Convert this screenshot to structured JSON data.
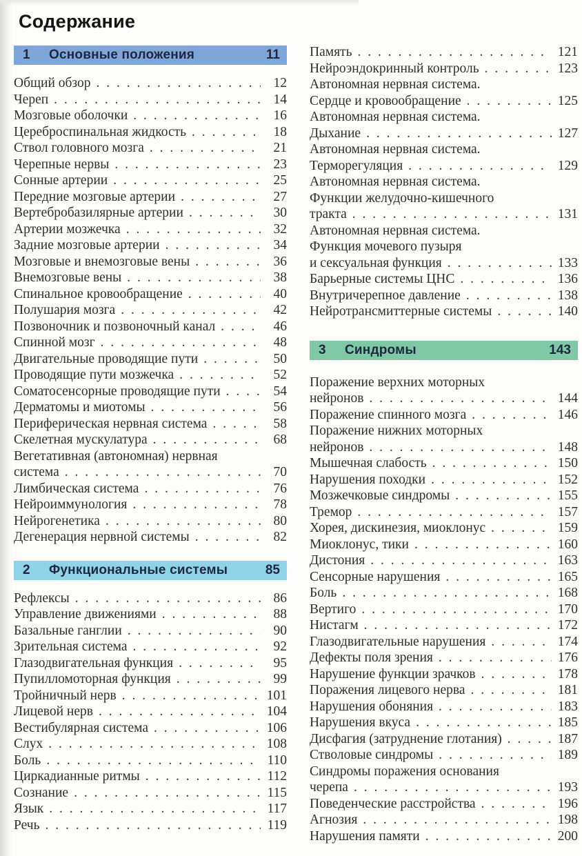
{
  "page_title": "Содержание",
  "toc": {
    "left_column": [
      {
        "type": "section",
        "number": "1",
        "title": "Основные положения",
        "page": "11",
        "bg": "#7ea6d8"
      },
      {
        "type": "entry",
        "lines": [
          "Общий обзор"
        ],
        "page": "12"
      },
      {
        "type": "entry",
        "lines": [
          "Череп"
        ],
        "page": "14"
      },
      {
        "type": "entry",
        "lines": [
          "Мозговые оболочки"
        ],
        "page": "16"
      },
      {
        "type": "entry",
        "lines": [
          "Цереброспинальная жидкость"
        ],
        "page": "18"
      },
      {
        "type": "entry",
        "lines": [
          "Ствол головного мозга"
        ],
        "page": "21"
      },
      {
        "type": "entry",
        "lines": [
          "Черепные нервы"
        ],
        "page": "23"
      },
      {
        "type": "entry",
        "lines": [
          "Сонные артерии"
        ],
        "page": "25"
      },
      {
        "type": "entry",
        "lines": [
          "Передние мозговые артерии"
        ],
        "page": "27"
      },
      {
        "type": "entry",
        "lines": [
          "Вертебробазилярные артерии"
        ],
        "page": "30"
      },
      {
        "type": "entry",
        "lines": [
          "Артерии мозжечка"
        ],
        "page": "32"
      },
      {
        "type": "entry",
        "lines": [
          "Задние мозговые артерии"
        ],
        "page": "34"
      },
      {
        "type": "entry",
        "lines": [
          "Мозговые и внемозговые вены"
        ],
        "page": "36"
      },
      {
        "type": "entry",
        "lines": [
          "Внемозговые вены"
        ],
        "page": "38"
      },
      {
        "type": "entry",
        "lines": [
          "Спинальное кровообращение"
        ],
        "page": "40"
      },
      {
        "type": "entry",
        "lines": [
          "Полушария мозга"
        ],
        "page": "42"
      },
      {
        "type": "entry",
        "lines": [
          "Позвоночник и позвоночный канал"
        ],
        "page": "46"
      },
      {
        "type": "entry",
        "lines": [
          "Спинной мозг"
        ],
        "page": "48"
      },
      {
        "type": "entry",
        "lines": [
          "Двигательные проводящие пути"
        ],
        "page": "50"
      },
      {
        "type": "entry",
        "lines": [
          "Проводящие пути мозжечка"
        ],
        "page": "52"
      },
      {
        "type": "entry",
        "lines": [
          "Соматосенсорные проводящие пути"
        ],
        "page": "54"
      },
      {
        "type": "entry",
        "lines": [
          "Дерматомы и миотомы"
        ],
        "page": "56"
      },
      {
        "type": "entry",
        "lines": [
          "Периферическая нервная система"
        ],
        "page": "58"
      },
      {
        "type": "entry",
        "lines": [
          "Скелетная мускулатура"
        ],
        "page": "68"
      },
      {
        "type": "entry",
        "lines": [
          "Вегетативная (автономная) нервная",
          "система"
        ],
        "page": "70"
      },
      {
        "type": "entry",
        "lines": [
          "Лимбическая система"
        ],
        "page": "76"
      },
      {
        "type": "entry",
        "lines": [
          "Нейроиммунология"
        ],
        "page": "78"
      },
      {
        "type": "entry",
        "lines": [
          "Нейрогенетика"
        ],
        "page": "80"
      },
      {
        "type": "entry",
        "lines": [
          "Дегенерация нервной системы"
        ],
        "page": "82"
      },
      {
        "type": "section",
        "number": "2",
        "title": "Функциональные системы",
        "page": "85",
        "bg": "#8fd3e6"
      },
      {
        "type": "entry",
        "lines": [
          "Рефлексы"
        ],
        "page": "86"
      },
      {
        "type": "entry",
        "lines": [
          "Управление движениями"
        ],
        "page": "88"
      },
      {
        "type": "entry",
        "lines": [
          "Базальные ганглии"
        ],
        "page": "90"
      },
      {
        "type": "entry",
        "lines": [
          "Зрительная система"
        ],
        "page": "92"
      },
      {
        "type": "entry",
        "lines": [
          "Глазодвигательная функция"
        ],
        "page": "95"
      },
      {
        "type": "entry",
        "lines": [
          "Пупилломоторная функция"
        ],
        "page": "99"
      },
      {
        "type": "entry",
        "lines": [
          "Тройничный нерв"
        ],
        "page": "101"
      },
      {
        "type": "entry",
        "lines": [
          "Лицевой нерв"
        ],
        "page": "104"
      },
      {
        "type": "entry",
        "lines": [
          "Вестибулярная система"
        ],
        "page": "106"
      },
      {
        "type": "entry",
        "lines": [
          "Слух"
        ],
        "page": "108"
      },
      {
        "type": "entry",
        "lines": [
          "Боль"
        ],
        "page": "110"
      },
      {
        "type": "entry",
        "lines": [
          "Циркадианные ритмы"
        ],
        "page": "112"
      },
      {
        "type": "entry",
        "lines": [
          "Сознание"
        ],
        "page": "115"
      },
      {
        "type": "entry",
        "lines": [
          "Язык"
        ],
        "page": "117"
      },
      {
        "type": "entry",
        "lines": [
          "Речь"
        ],
        "page": "119"
      }
    ],
    "right_column": [
      {
        "type": "entry",
        "lines": [
          "Память"
        ],
        "page": "121"
      },
      {
        "type": "entry",
        "lines": [
          "Нейроэндокринный контроль"
        ],
        "page": "123"
      },
      {
        "type": "entry",
        "lines": [
          "Автономная нервная система.",
          "Сердце и кровообращение"
        ],
        "page": "125"
      },
      {
        "type": "entry",
        "lines": [
          "Автономная нервная система.",
          "Дыхание"
        ],
        "page": "127"
      },
      {
        "type": "entry",
        "lines": [
          "Автономная нервная система.",
          "Терморегуляция"
        ],
        "page": "129"
      },
      {
        "type": "entry",
        "lines": [
          "Автономная нервная система.",
          "Функции желудочно-кишечного",
          "тракта"
        ],
        "page": "131"
      },
      {
        "type": "entry",
        "lines": [
          "Автономная нервная система.",
          "Функция мочевого пузыря",
          "и сексуальная функция"
        ],
        "page": "133"
      },
      {
        "type": "entry",
        "lines": [
          "Барьерные системы ЦНС"
        ],
        "page": "136"
      },
      {
        "type": "entry",
        "lines": [
          "Внутричерепное давление"
        ],
        "page": "138"
      },
      {
        "type": "entry",
        "lines": [
          "Нейротрансмиттерные системы"
        ],
        "page": "140"
      },
      {
        "type": "section",
        "number": "3",
        "title": "Синдромы",
        "page": "143",
        "bg": "#7fc8a6"
      },
      {
        "type": "entry",
        "lines": [
          "Поражение верхних моторных",
          "нейронов"
        ],
        "page": "144"
      },
      {
        "type": "entry",
        "lines": [
          "Поражение спинного мозга"
        ],
        "page": "146"
      },
      {
        "type": "entry",
        "lines": [
          "Поражение нижних моторных",
          "нейронов"
        ],
        "page": "148"
      },
      {
        "type": "entry",
        "lines": [
          "Мышечная слабость"
        ],
        "page": "150"
      },
      {
        "type": "entry",
        "lines": [
          "Нарушения походки"
        ],
        "page": "152"
      },
      {
        "type": "entry",
        "lines": [
          "Мозжечковые синдромы"
        ],
        "page": "155"
      },
      {
        "type": "entry",
        "lines": [
          "Тремор"
        ],
        "page": "157"
      },
      {
        "type": "entry",
        "lines": [
          "Хорея, дискинезия, миоклонус"
        ],
        "page": "159"
      },
      {
        "type": "entry",
        "lines": [
          "Миоклонус, тики"
        ],
        "page": "160"
      },
      {
        "type": "entry",
        "lines": [
          "Дистония"
        ],
        "page": "163"
      },
      {
        "type": "entry",
        "lines": [
          "Сенсорные нарушения"
        ],
        "page": "165"
      },
      {
        "type": "entry",
        "lines": [
          "Боль"
        ],
        "page": "168"
      },
      {
        "type": "entry",
        "lines": [
          "Вертиго"
        ],
        "page": "170"
      },
      {
        "type": "entry",
        "lines": [
          "Нистагм"
        ],
        "page": "172"
      },
      {
        "type": "entry",
        "lines": [
          "Глазодвигательные нарушения"
        ],
        "page": "174"
      },
      {
        "type": "entry",
        "lines": [
          "Дефекты поля зрения"
        ],
        "page": "176"
      },
      {
        "type": "entry",
        "lines": [
          "Нарушение функции зрачков"
        ],
        "page": "178"
      },
      {
        "type": "entry",
        "lines": [
          "Поражения лицевого нерва"
        ],
        "page": "181"
      },
      {
        "type": "entry",
        "lines": [
          "Нарушения обоняния"
        ],
        "page": "183"
      },
      {
        "type": "entry",
        "lines": [
          "Нарушения вкуса"
        ],
        "page": "185"
      },
      {
        "type": "entry",
        "lines": [
          "Дисфагия (затруднение глотания)"
        ],
        "page": "187"
      },
      {
        "type": "entry",
        "lines": [
          "Стволовые синдромы"
        ],
        "page": "189"
      },
      {
        "type": "entry",
        "lines": [
          "Синдромы поражения основания",
          "черепа"
        ],
        "page": "193"
      },
      {
        "type": "entry",
        "lines": [
          "Поведенческие расстройства"
        ],
        "page": "196"
      },
      {
        "type": "entry",
        "lines": [
          "Агнозия"
        ],
        "page": "198"
      },
      {
        "type": "entry",
        "lines": [
          "Нарушения памяти"
        ],
        "page": "200"
      }
    ]
  }
}
